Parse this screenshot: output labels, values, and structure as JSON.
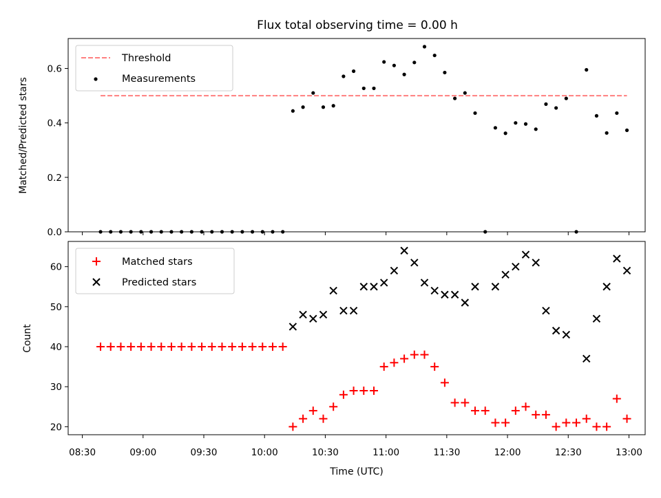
{
  "chart_data": [
    {
      "type": "scatter",
      "title": "Flux total observing time = 0.00 h",
      "xlabel": "",
      "ylabel": "Matched/Predicted stars",
      "ylim": [
        0,
        0.71
      ],
      "xlim": [
        "08:23",
        "13:08"
      ],
      "yticks": [
        "0.0",
        "0.2",
        "0.4",
        "0.6"
      ],
      "grid": false,
      "legend": "upper left",
      "colors": {
        "threshold": "#ff7f7f",
        "measurements": "#000000"
      },
      "series": [
        {
          "name": "Threshold",
          "style": "dashed-line",
          "x": [
            "08:39",
            "12:59"
          ],
          "y": [
            0.5,
            0.5
          ]
        },
        {
          "name": "Measurements",
          "style": "dot",
          "x": [
            "08:39",
            "08:44",
            "08:49",
            "08:54",
            "08:59",
            "09:04",
            "09:09",
            "09:14",
            "09:19",
            "09:24",
            "09:29",
            "09:34",
            "09:39",
            "09:44",
            "09:49",
            "09:54",
            "09:59",
            "10:04",
            "10:09",
            "10:14",
            "10:19",
            "10:24",
            "10:29",
            "10:34",
            "10:39",
            "10:44",
            "10:49",
            "10:54",
            "10:59",
            "11:04",
            "11:09",
            "11:14",
            "11:19",
            "11:24",
            "11:29",
            "11:34",
            "11:39",
            "11:44",
            "11:49",
            "11:54",
            "11:59",
            "12:04",
            "12:09",
            "12:14",
            "12:19",
            "12:24",
            "12:29",
            "12:34",
            "12:39",
            "12:44",
            "12:49",
            "12:54",
            "12:59"
          ],
          "y": [
            0,
            0,
            0,
            0,
            0,
            0,
            0,
            0,
            0,
            0,
            0,
            0,
            0,
            0,
            0,
            0,
            0,
            0,
            0,
            0.444,
            0.458,
            0.51,
            0.458,
            0.463,
            0.571,
            0.59,
            0.527,
            0.527,
            0.624,
            0.611,
            0.578,
            0.622,
            0.68,
            0.648,
            0.585,
            0.49,
            0.51,
            0.436,
            0,
            0.382,
            0.362,
            0.4,
            0.396,
            0.377,
            0.469,
            0.455,
            0.49,
            0,
            0.595,
            0.426,
            0.363,
            0.436,
            0.373
          ]
        }
      ]
    },
    {
      "type": "scatter",
      "title": "",
      "xlabel": "Time (UTC)",
      "ylabel": "Count",
      "ylim": [
        18,
        66.3
      ],
      "xlim": [
        "08:23",
        "13:08"
      ],
      "xticks": [
        "08:30",
        "09:00",
        "09:30",
        "10:00",
        "10:30",
        "11:00",
        "11:30",
        "12:00",
        "12:30",
        "13:00"
      ],
      "yticks": [
        "20",
        "30",
        "40",
        "50",
        "60"
      ],
      "grid": false,
      "legend": "upper left",
      "colors": {
        "matched": "#ff0000",
        "predicted": "#000000"
      },
      "series": [
        {
          "name": "Matched stars",
          "marker": "+",
          "x": [
            "08:39",
            "08:44",
            "08:49",
            "08:54",
            "08:59",
            "09:04",
            "09:09",
            "09:14",
            "09:19",
            "09:24",
            "09:29",
            "09:34",
            "09:39",
            "09:44",
            "09:49",
            "09:54",
            "09:59",
            "10:04",
            "10:09",
            "10:14",
            "10:19",
            "10:24",
            "10:29",
            "10:34",
            "10:39",
            "10:44",
            "10:49",
            "10:54",
            "10:59",
            "11:04",
            "11:09",
            "11:14",
            "11:19",
            "11:24",
            "11:29",
            "11:34",
            "11:39",
            "11:44",
            "11:49",
            "11:54",
            "11:59",
            "12:04",
            "12:09",
            "12:14",
            "12:19",
            "12:24",
            "12:29",
            "12:34",
            "12:39",
            "12:44",
            "12:49",
            "12:54",
            "12:59"
          ],
          "y": [
            40,
            40,
            40,
            40,
            40,
            40,
            40,
            40,
            40,
            40,
            40,
            40,
            40,
            40,
            40,
            40,
            40,
            40,
            40,
            20,
            22,
            24,
            22,
            25,
            28,
            29,
            29,
            29,
            35,
            36,
            37,
            38,
            38,
            35,
            31,
            26,
            26,
            24,
            24,
            21,
            21,
            24,
            25,
            23,
            23,
            20,
            21,
            21,
            22,
            20,
            20,
            27,
            22
          ]
        },
        {
          "name": "Predicted stars",
          "marker": "x",
          "x": [
            "10:14",
            "10:19",
            "10:24",
            "10:29",
            "10:34",
            "10:39",
            "10:44",
            "10:49",
            "10:54",
            "10:59",
            "11:04",
            "11:09",
            "11:14",
            "11:19",
            "11:24",
            "11:29",
            "11:34",
            "11:39",
            "11:44",
            "11:54",
            "11:59",
            "12:04",
            "12:09",
            "12:14",
            "12:19",
            "12:24",
            "12:29",
            "12:39",
            "12:44",
            "12:49",
            "12:54",
            "12:59"
          ],
          "y": [
            45,
            48,
            47,
            48,
            54,
            49,
            49,
            55,
            55,
            56,
            59,
            64,
            61,
            56,
            54,
            53,
            53,
            51,
            55,
            55,
            58,
            60,
            63,
            61,
            49,
            44,
            43,
            37,
            47,
            55,
            62,
            59
          ]
        }
      ]
    }
  ]
}
